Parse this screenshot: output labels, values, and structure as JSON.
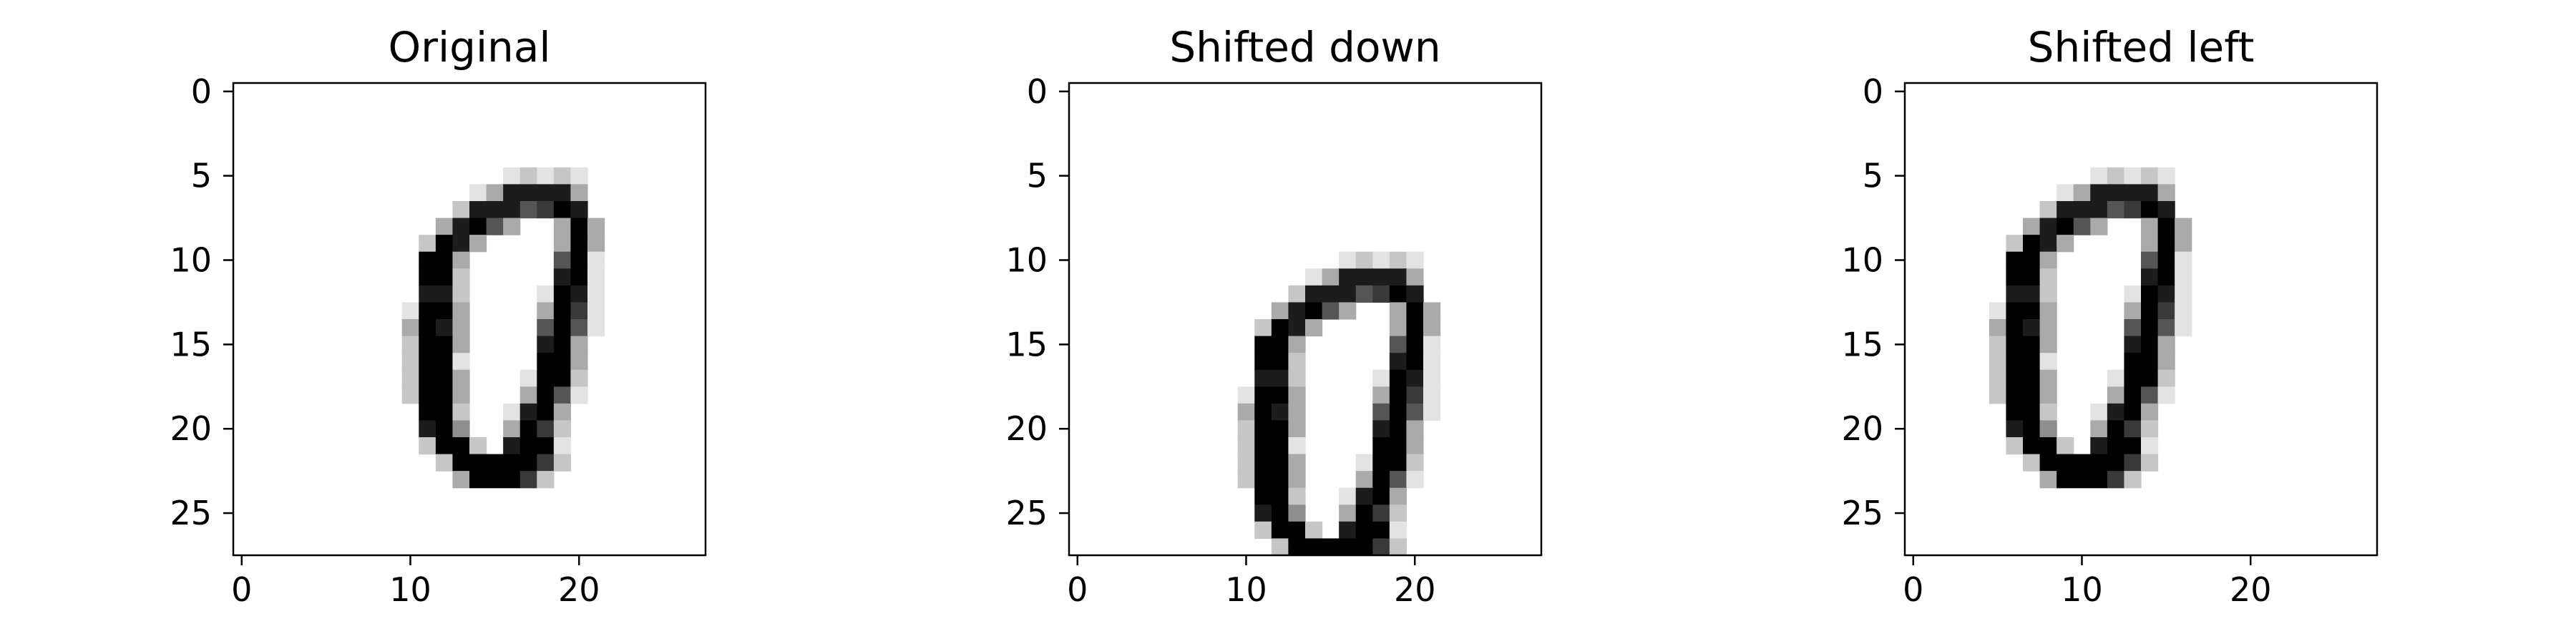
{
  "chart_data": [
    {
      "type": "heatmap",
      "title": "Original",
      "colormap": "binary",
      "xlim": [
        -0.5,
        27.5
      ],
      "ylim": [
        27.5,
        -0.5
      ],
      "xticks": [
        0,
        10,
        20
      ],
      "yticks": [
        0,
        5,
        10,
        15,
        20,
        25
      ],
      "shift": [
        0,
        0
      ],
      "pixels": "............................|............................|............................|............................|............................|................12121.........|..............1388883........|.............28886798........|............38963..393.......|...........2983....393.......|...........993.....691.......|...........992.....891.......|...........882....1981.......|..........1993....3971.......|..........3983....6961.......|..........2993....893........|..........2991....993........|..........2993...1992........|..........2993...3961........|...........992..1893.........|...........894..3972.........|...........2992.8991.........|............29999972.........|.............399972..........|............................|............................|............................|............................"
    },
    {
      "type": "heatmap",
      "title": "Shifted down",
      "colormap": "binary",
      "xlim": [
        -0.5,
        27.5
      ],
      "ylim": [
        27.5,
        -0.5
      ],
      "xticks": [
        0,
        10,
        20
      ],
      "yticks": [
        0,
        5,
        10,
        15,
        20,
        25
      ],
      "shift": [
        5,
        0
      ]
    },
    {
      "type": "heatmap",
      "title": "Shifted left",
      "colormap": "binary",
      "xlim": [
        -0.5,
        27.5
      ],
      "ylim": [
        27.5,
        -0.5
      ],
      "xticks": [
        0,
        10,
        20
      ],
      "yticks": [
        0,
        5,
        10,
        15,
        20,
        25
      ],
      "shift": [
        0,
        -5
      ]
    }
  ]
}
